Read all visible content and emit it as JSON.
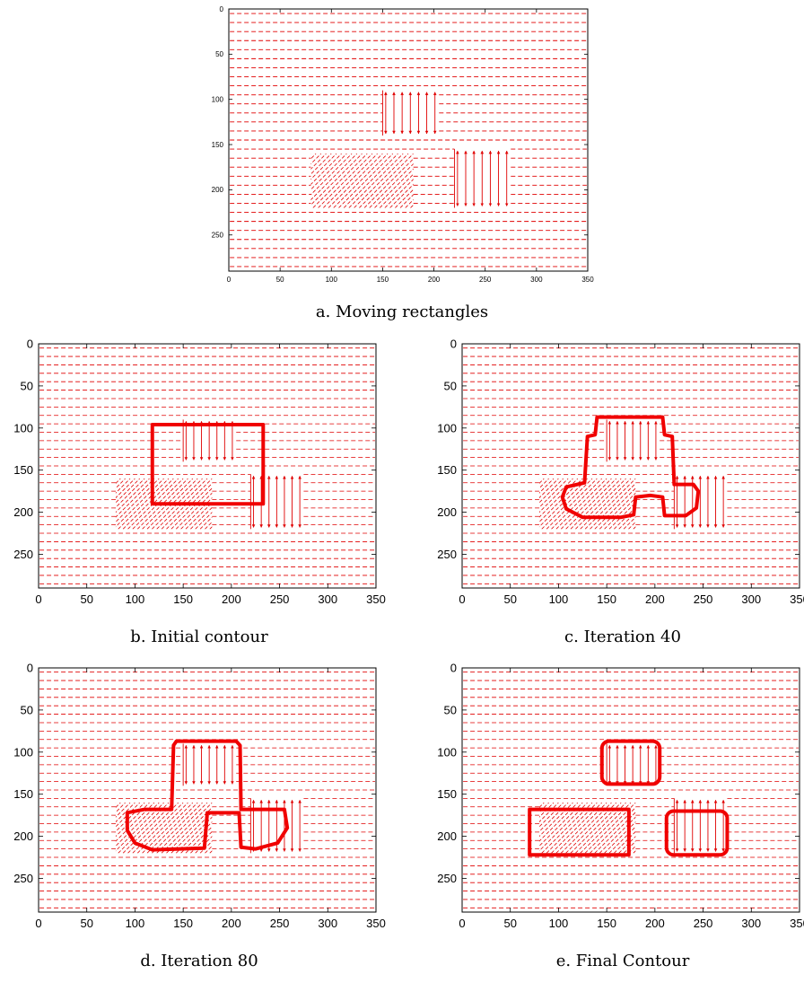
{
  "figure": {
    "captions": {
      "a": "a.  Moving rectangles",
      "b": "b.  Initial contour",
      "c": "c. Iteration 40",
      "d": "d.  Iteration 80",
      "e": "e. Final Contour"
    }
  },
  "chart_data": [
    {
      "id": "a",
      "type": "vector-field",
      "caption": "a.  Moving rectangles",
      "xlim": [
        0,
        350
      ],
      "ylim": [
        0,
        290
      ],
      "y_inverted": true,
      "xticks": [
        0,
        50,
        100,
        150,
        200,
        250,
        300,
        350
      ],
      "yticks": [
        0,
        50,
        100,
        150,
        200,
        250
      ],
      "field_color": "#e00000",
      "regions": [
        {
          "name": "vertical-small",
          "x": [
            150,
            205
          ],
          "y": [
            90,
            140
          ],
          "pattern": "vertical"
        },
        {
          "name": "diagonal",
          "x": [
            80,
            180
          ],
          "y": [
            160,
            220
          ],
          "pattern": "diagonal"
        },
        {
          "name": "vertical-large",
          "x": [
            220,
            275
          ],
          "y": [
            155,
            220
          ],
          "pattern": "vertical"
        }
      ],
      "contours": []
    },
    {
      "id": "b",
      "type": "vector-field",
      "caption": "b.  Initial contour",
      "xlim": [
        0,
        350
      ],
      "ylim": [
        0,
        290
      ],
      "y_inverted": true,
      "xticks": [
        0,
        50,
        100,
        150,
        200,
        250,
        300,
        350
      ],
      "yticks": [
        0,
        50,
        100,
        150,
        200,
        250
      ],
      "field_color": "#e00000",
      "regions": [
        {
          "name": "vertical-small",
          "x": [
            150,
            205
          ],
          "y": [
            90,
            140
          ],
          "pattern": "vertical"
        },
        {
          "name": "diagonal",
          "x": [
            80,
            180
          ],
          "y": [
            160,
            220
          ],
          "pattern": "diagonal"
        },
        {
          "name": "vertical-large",
          "x": [
            220,
            275
          ],
          "y": [
            155,
            220
          ],
          "pattern": "vertical"
        }
      ],
      "contours": [
        {
          "name": "initial-contour",
          "points": [
            [
              118,
              96
            ],
            [
              233,
              96
            ],
            [
              233,
              190
            ],
            [
              118,
              190
            ]
          ],
          "closed": true,
          "smooth": false
        }
      ]
    },
    {
      "id": "c",
      "type": "vector-field",
      "caption": "c. Iteration 40",
      "xlim": [
        0,
        350
      ],
      "ylim": [
        0,
        290
      ],
      "y_inverted": true,
      "xticks": [
        0,
        50,
        100,
        150,
        200,
        250,
        300,
        350
      ],
      "yticks": [
        0,
        50,
        100,
        150,
        200,
        250
      ],
      "field_color": "#e00000",
      "regions": [
        {
          "name": "vertical-small",
          "x": [
            150,
            205
          ],
          "y": [
            90,
            140
          ],
          "pattern": "vertical"
        },
        {
          "name": "diagonal",
          "x": [
            80,
            180
          ],
          "y": [
            160,
            220
          ],
          "pattern": "diagonal"
        },
        {
          "name": "vertical-large",
          "x": [
            220,
            275
          ],
          "y": [
            155,
            220
          ],
          "pattern": "vertical"
        }
      ],
      "contours": [
        {
          "name": "contour-iter40",
          "points": [
            [
              140,
              87
            ],
            [
              208,
              87
            ],
            [
              210,
              108
            ],
            [
              218,
              110
            ],
            [
              220,
              167
            ],
            [
              240,
              167
            ],
            [
              245,
              175
            ],
            [
              243,
              195
            ],
            [
              232,
              204
            ],
            [
              210,
              204
            ],
            [
              208,
              182
            ],
            [
              195,
              180
            ],
            [
              180,
              182
            ],
            [
              178,
              203
            ],
            [
              165,
              206
            ],
            [
              125,
              206
            ],
            [
              108,
              196
            ],
            [
              104,
              182
            ],
            [
              108,
              170
            ],
            [
              127,
              165
            ],
            [
              130,
              110
            ],
            [
              138,
              108
            ]
          ],
          "closed": true,
          "smooth": false
        }
      ]
    },
    {
      "id": "d",
      "type": "vector-field",
      "caption": "d.  Iteration 80",
      "xlim": [
        0,
        350
      ],
      "ylim": [
        0,
        290
      ],
      "y_inverted": true,
      "xticks": [
        0,
        50,
        100,
        150,
        200,
        250,
        300,
        350
      ],
      "yticks": [
        0,
        50,
        100,
        150,
        200,
        250
      ],
      "field_color": "#e00000",
      "regions": [
        {
          "name": "vertical-small",
          "x": [
            150,
            205
          ],
          "y": [
            90,
            140
          ],
          "pattern": "vertical"
        },
        {
          "name": "diagonal",
          "x": [
            80,
            180
          ],
          "y": [
            160,
            220
          ],
          "pattern": "diagonal"
        },
        {
          "name": "vertical-large",
          "x": [
            220,
            275
          ],
          "y": [
            155,
            220
          ],
          "pattern": "vertical"
        }
      ],
      "contours": [
        {
          "name": "contour-iter80",
          "points": [
            [
              143,
              87
            ],
            [
              205,
              87
            ],
            [
              209,
              92
            ],
            [
              210,
              168
            ],
            [
              255,
              168
            ],
            [
              258,
              190
            ],
            [
              248,
              208
            ],
            [
              225,
              215
            ],
            [
              210,
              213
            ],
            [
              208,
              172
            ],
            [
              175,
              172
            ],
            [
              172,
              214
            ],
            [
              118,
              216
            ],
            [
              100,
              208
            ],
            [
              92,
              193
            ],
            [
              92,
              172
            ],
            [
              110,
              168
            ],
            [
              138,
              168
            ],
            [
              140,
              92
            ]
          ],
          "closed": true,
          "smooth": false
        }
      ]
    },
    {
      "id": "e",
      "type": "vector-field",
      "caption": "e. Final Contour",
      "xlim": [
        0,
        350
      ],
      "ylim": [
        0,
        290
      ],
      "y_inverted": true,
      "xticks": [
        0,
        50,
        100,
        150,
        200,
        250,
        300,
        350
      ],
      "yticks": [
        0,
        50,
        100,
        150,
        200,
        250
      ],
      "field_color": "#e00000",
      "regions": [
        {
          "name": "vertical-small",
          "x": [
            150,
            205
          ],
          "y": [
            90,
            140
          ],
          "pattern": "vertical"
        },
        {
          "name": "diagonal",
          "x": [
            80,
            180
          ],
          "y": [
            160,
            220
          ],
          "pattern": "diagonal"
        },
        {
          "name": "vertical-large",
          "x": [
            220,
            275
          ],
          "y": [
            155,
            220
          ],
          "pattern": "vertical"
        }
      ],
      "contours": [
        {
          "name": "contour-final-top",
          "points": [
            [
              145,
              87
            ],
            [
              205,
              87
            ],
            [
              205,
              138
            ],
            [
              145,
              138
            ]
          ],
          "closed": true,
          "rounded": true
        },
        {
          "name": "contour-final-left",
          "points": [
            [
              70,
              168
            ],
            [
              173,
              168
            ],
            [
              173,
              222
            ],
            [
              70,
              222
            ]
          ],
          "closed": true,
          "rounded": false
        },
        {
          "name": "contour-final-right",
          "points": [
            [
              212,
              170
            ],
            [
              275,
              170
            ],
            [
              275,
              222
            ],
            [
              212,
              222
            ]
          ],
          "closed": true,
          "rounded": true
        }
      ]
    }
  ]
}
